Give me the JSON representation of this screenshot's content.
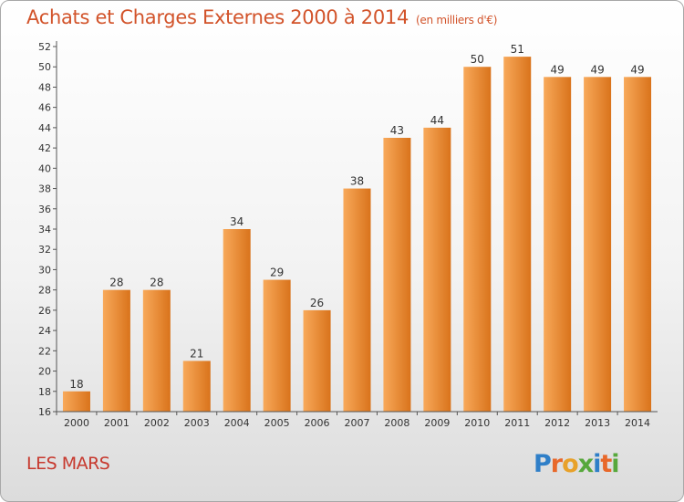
{
  "header": {
    "title": "Achats et Charges Externes 2000 à 2014",
    "unit": "(en milliers d'€)"
  },
  "footer": {
    "commune": "LES MARS",
    "logo_text": "Proxiti"
  },
  "colors": {
    "bar_light": "#f8a95a",
    "bar_dark": "#d9731b",
    "title": "#d2532a",
    "commune": "#c7392e"
  },
  "chart_data": {
    "type": "bar",
    "title": "Achats et Charges Externes 2000 à 2014",
    "subtitle": "(en milliers d'€)",
    "xlabel": "",
    "ylabel": "",
    "categories": [
      "2000",
      "2001",
      "2002",
      "2003",
      "2004",
      "2005",
      "2006",
      "2007",
      "2008",
      "2009",
      "2010",
      "2011",
      "2012",
      "2013",
      "2014"
    ],
    "values": [
      18,
      28,
      28,
      21,
      34,
      29,
      26,
      38,
      43,
      44,
      50,
      51,
      49,
      49,
      49
    ],
    "ylim": [
      16,
      52
    ],
    "ytick_step": 2,
    "grid": false,
    "data_labels": true
  }
}
